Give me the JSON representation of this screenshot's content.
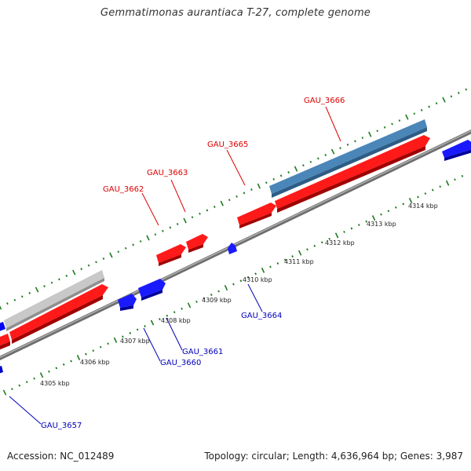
{
  "title": "Gemmatimonas aurantiaca T-27, complete genome",
  "footer": {
    "accession": "Accession: NC_012489",
    "summary": "Topology: circular; Length: 4,636,964 bp; Genes: 3,987"
  },
  "colors": {
    "forward_gene": "#ff0000",
    "reverse_gene": "#0000ff",
    "rna_feature": "#4682b4",
    "other_feature": "#c0c0c0",
    "backbone": "#8a8a8a",
    "tick": "#1f7a1f",
    "forward_label": "#dd0000",
    "reverse_label": "#0000bb"
  },
  "inner_ruler_labels": [
    "4305 kbp",
    "4306 kbp",
    "4307 kbp",
    "4308 kbp",
    "4309 kbp",
    "4310 kbp",
    "4311 kbp",
    "4312 kbp",
    "4313 kbp",
    "4314 kbp"
  ],
  "gene_labels": {
    "forward": [
      "GAU_3662",
      "GAU_3663",
      "GAU_3665",
      "GAU_3666"
    ],
    "reverse": [
      "GAU_3657",
      "GAU_3660",
      "GAU_3661",
      "GAU_3664"
    ]
  }
}
